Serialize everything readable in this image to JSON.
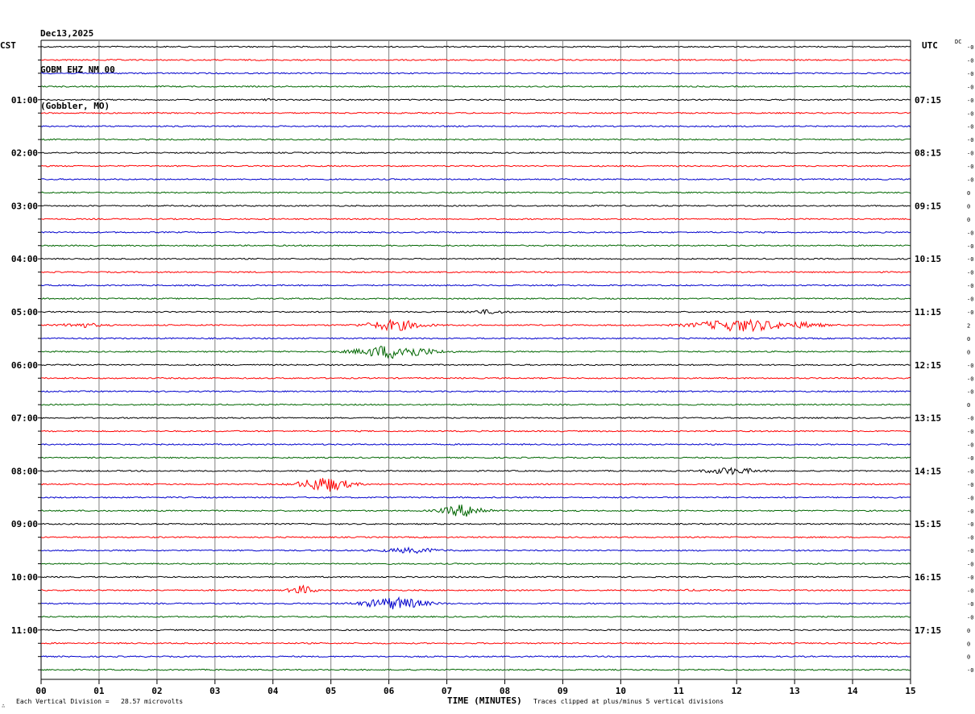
{
  "header": {
    "date": "Dec13,2025",
    "station": "GOBM EHZ NM 00",
    "location": "(Gobbler, MO)"
  },
  "left_tz": "CST",
  "right_tz": "UTC",
  "dc_label": "DC",
  "corner_mark": "∴",
  "footer": {
    "scale": "Each Vertical Division =   28.57 microvolts",
    "clip": "Traces clipped at plus/minus 5 vertical divisions"
  },
  "colors": {
    "trace": [
      "#000000",
      "#ff0000",
      "#0000cc",
      "#006600"
    ],
    "grid": "#808080"
  },
  "chart_data": {
    "type": "line",
    "title": "",
    "xlabel": "TIME (MINUTES)",
    "ylabel": "",
    "xlim": [
      0,
      15
    ],
    "x_ticks": [
      "00",
      "01",
      "02",
      "03",
      "04",
      "05",
      "06",
      "07",
      "08",
      "09",
      "10",
      "11",
      "12",
      "13",
      "14",
      "15"
    ],
    "trace_count": 48,
    "minutes_per_trace": 15,
    "left_hour_labels": [
      {
        "trace": 4,
        "label": "01:00"
      },
      {
        "trace": 8,
        "label": "02:00"
      },
      {
        "trace": 12,
        "label": "03:00"
      },
      {
        "trace": 16,
        "label": "04:00"
      },
      {
        "trace": 20,
        "label": "05:00"
      },
      {
        "trace": 24,
        "label": "06:00"
      },
      {
        "trace": 28,
        "label": "07:00"
      },
      {
        "trace": 32,
        "label": "08:00"
      },
      {
        "trace": 36,
        "label": "09:00"
      },
      {
        "trace": 40,
        "label": "10:00"
      },
      {
        "trace": 44,
        "label": "11:00"
      }
    ],
    "right_hour_labels": [
      {
        "trace": 4,
        "label": "07:15"
      },
      {
        "trace": 8,
        "label": "08:15"
      },
      {
        "trace": 12,
        "label": "09:15"
      },
      {
        "trace": 16,
        "label": "10:15"
      },
      {
        "trace": 20,
        "label": "11:15"
      },
      {
        "trace": 24,
        "label": "12:15"
      },
      {
        "trace": 28,
        "label": "13:15"
      },
      {
        "trace": 32,
        "label": "14:15"
      },
      {
        "trace": 36,
        "label": "15:15"
      },
      {
        "trace": 40,
        "label": "16:15"
      },
      {
        "trace": 44,
        "label": "17:15"
      }
    ],
    "dc_offsets": [
      "-0",
      "-0",
      "-0",
      "-0",
      "-0",
      "-0",
      "-0",
      "-0",
      "-0",
      "-0",
      "-0",
      "0",
      "0",
      "0",
      "-0",
      "-0",
      "-0",
      "-0",
      "-0",
      "-0",
      "-0",
      "2",
      "0",
      "0",
      "-0",
      "-0",
      "-0",
      "0",
      "-0",
      "-0",
      "-0",
      "-0",
      "-0",
      "-0",
      "-0",
      "-0",
      "-0",
      "-0",
      "-0",
      "-0",
      "-0",
      "-0",
      "-0",
      "-0",
      "0",
      "0",
      "0",
      "-0"
    ],
    "events": [
      {
        "trace": 4,
        "center_min": 3.9,
        "amp": 0.5,
        "dur": 0.1
      },
      {
        "trace": 21,
        "center_min": 0.7,
        "amp": 1.4,
        "dur": 0.6
      },
      {
        "trace": 20,
        "center_min": 7.7,
        "amp": 1.2,
        "dur": 0.6
      },
      {
        "trace": 21,
        "center_min": 6.1,
        "amp": 3.5,
        "dur": 0.9
      },
      {
        "trace": 21,
        "center_min": 12.1,
        "amp": 4.0,
        "dur": 1.5
      },
      {
        "trace": 21,
        "center_min": 13.2,
        "amp": 1.3,
        "dur": 0.6
      },
      {
        "trace": 23,
        "center_min": 6.1,
        "amp": 4.5,
        "dur": 1.2
      },
      {
        "trace": 32,
        "center_min": 11.9,
        "amp": 2.2,
        "dur": 0.8
      },
      {
        "trace": 33,
        "center_min": 4.9,
        "amp": 5.0,
        "dur": 0.8
      },
      {
        "trace": 35,
        "center_min": 7.3,
        "amp": 4.0,
        "dur": 0.7
      },
      {
        "trace": 38,
        "center_min": 6.4,
        "amp": 1.6,
        "dur": 0.9
      },
      {
        "trace": 41,
        "center_min": 4.5,
        "amp": 3.0,
        "dur": 0.4
      },
      {
        "trace": 42,
        "center_min": 6.1,
        "amp": 4.0,
        "dur": 1.0
      },
      {
        "trace": 41,
        "center_min": 11.3,
        "amp": 0.3,
        "dur": 0.6
      }
    ]
  }
}
